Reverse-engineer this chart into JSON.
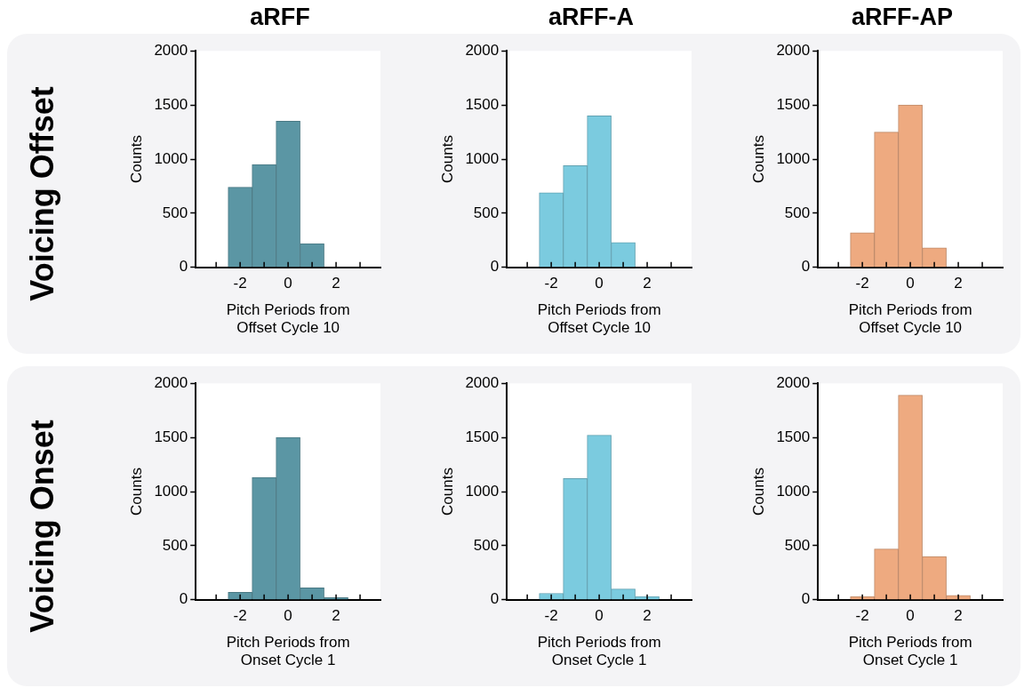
{
  "chart_data": [
    {
      "type": "histogram",
      "title": "aRFF",
      "annotations": [
        "Voicing Offset"
      ],
      "xlabel": "Pitch Periods from\nOffset Cycle 10",
      "ylabel": "Counts",
      "bins": [
        -3.5,
        -2.5,
        -1.5,
        -0.5,
        0.5,
        1.5,
        2.5,
        3.5
      ],
      "values": [
        0,
        740,
        950,
        1350,
        220,
        0,
        0
      ],
      "color": "#5b96a4",
      "xlim": [
        -3.85,
        3.85
      ],
      "xticks": [
        {
          "value": -3,
          "label": null
        },
        -2,
        {
          "value": -1,
          "label": null
        },
        0,
        {
          "value": 1,
          "label": null
        },
        2,
        {
          "value": 3,
          "label": null
        }
      ],
      "ylim": [
        0,
        2000
      ],
      "yticks": [
        0,
        500,
        1000,
        1500,
        2000
      ],
      "grid": false,
      "legend": false
    },
    {
      "type": "histogram",
      "title": "aRFF-A",
      "xlabel": "Pitch Periods from\nOffset Cycle 10",
      "ylabel": "Counts",
      "bins": [
        -3.5,
        -2.5,
        -1.5,
        -0.5,
        0.5,
        1.5,
        2.5,
        3.5
      ],
      "values": [
        0,
        690,
        940,
        1400,
        230,
        0,
        0
      ],
      "color": "#7bcbdf",
      "xlim": [
        -3.85,
        3.85
      ],
      "xticks": [
        {
          "value": -3,
          "label": null
        },
        -2,
        {
          "value": -1,
          "label": null
        },
        0,
        {
          "value": 1,
          "label": null
        },
        2,
        {
          "value": 3,
          "label": null
        }
      ],
      "ylim": [
        0,
        2000
      ],
      "yticks": [
        0,
        500,
        1000,
        1500,
        2000
      ],
      "grid": false,
      "legend": false
    },
    {
      "type": "histogram",
      "title": "aRFF-AP",
      "xlabel": "Pitch Periods from\nOffset Cycle 10",
      "ylabel": "Counts",
      "bins": [
        -3.5,
        -2.5,
        -1.5,
        -0.5,
        0.5,
        1.5,
        2.5,
        3.5
      ],
      "values": [
        0,
        320,
        1250,
        1500,
        180,
        0,
        0
      ],
      "color": "#eeaa80",
      "xlim": [
        -3.85,
        3.85
      ],
      "xticks": [
        {
          "value": -3,
          "label": null
        },
        -2,
        {
          "value": -1,
          "label": null
        },
        0,
        {
          "value": 1,
          "label": null
        },
        2,
        {
          "value": 3,
          "label": null
        }
      ],
      "ylim": [
        0,
        2000
      ],
      "yticks": [
        0,
        500,
        1000,
        1500,
        2000
      ],
      "grid": false,
      "legend": false
    },
    {
      "type": "histogram",
      "annotations": [
        "Voicing Onset"
      ],
      "xlabel": "Pitch Periods from\nOnset Cycle 1",
      "ylabel": "Counts",
      "bins": [
        -3.5,
        -2.5,
        -1.5,
        -0.5,
        0.5,
        1.5,
        2.5,
        3.5
      ],
      "values": [
        0,
        70,
        1130,
        1500,
        110,
        20,
        0
      ],
      "color": "#5b96a4",
      "xlim": [
        -3.85,
        3.85
      ],
      "xticks": [
        {
          "value": -3,
          "label": null
        },
        -2,
        {
          "value": -1,
          "label": null
        },
        0,
        {
          "value": 1,
          "label": null
        },
        2,
        {
          "value": 3,
          "label": null
        }
      ],
      "ylim": [
        0,
        2000
      ],
      "yticks": [
        0,
        500,
        1000,
        1500,
        2000
      ],
      "grid": false,
      "legend": false
    },
    {
      "type": "histogram",
      "xlabel": "Pitch Periods from\nOnset Cycle 1",
      "ylabel": "Counts",
      "bins": [
        -3.5,
        -2.5,
        -1.5,
        -0.5,
        0.5,
        1.5,
        2.5,
        3.5
      ],
      "values": [
        0,
        60,
        1120,
        1520,
        100,
        30,
        0
      ],
      "color": "#7bcbdf",
      "xlim": [
        -3.85,
        3.85
      ],
      "xticks": [
        {
          "value": -3,
          "label": null
        },
        -2,
        {
          "value": -1,
          "label": null
        },
        0,
        {
          "value": 1,
          "label": null
        },
        2,
        {
          "value": 3,
          "label": null
        }
      ],
      "ylim": [
        0,
        2000
      ],
      "yticks": [
        0,
        500,
        1000,
        1500,
        2000
      ],
      "grid": false,
      "legend": false
    },
    {
      "type": "histogram",
      "xlabel": "Pitch Periods from\nOnset Cycle 1",
      "ylabel": "Counts",
      "bins": [
        -3.5,
        -2.5,
        -1.5,
        -0.5,
        0.5,
        1.5,
        2.5,
        3.5
      ],
      "values": [
        0,
        30,
        470,
        1890,
        400,
        40,
        0
      ],
      "color": "#eeaa80",
      "xlim": [
        -3.85,
        3.85
      ],
      "xticks": [
        {
          "value": -3,
          "label": null
        },
        -2,
        {
          "value": -1,
          "label": null
        },
        0,
        {
          "value": 1,
          "label": null
        },
        2,
        {
          "value": 3,
          "label": null
        }
      ],
      "ylim": [
        0,
        2000
      ],
      "yticks": [
        0,
        500,
        1000,
        1500,
        2000
      ],
      "grid": false,
      "legend": false
    }
  ]
}
